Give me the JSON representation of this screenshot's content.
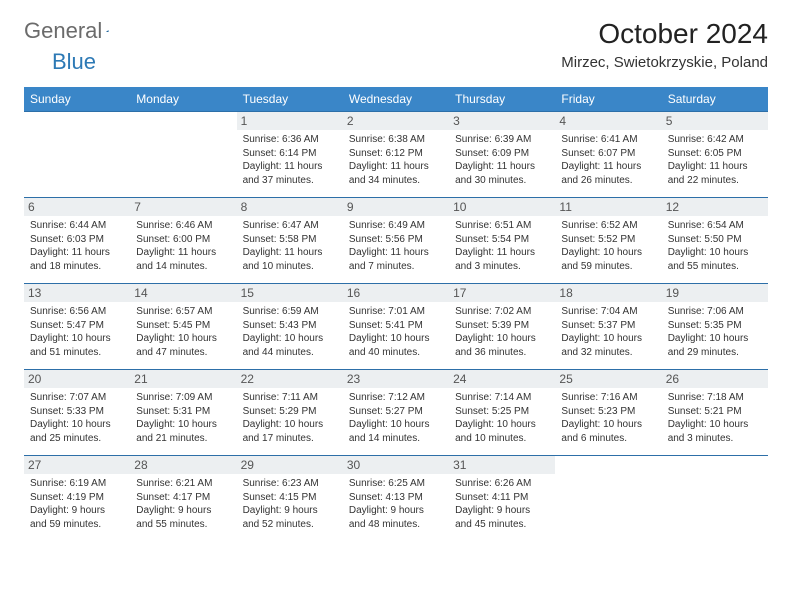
{
  "brand": {
    "part1": "General",
    "part2": "Blue"
  },
  "title": "October 2024",
  "location": "Mirzec, Swietokrzyskie, Poland",
  "colors": {
    "header_bg": "#3a86c8",
    "row_border": "#2d6fa8",
    "daynum_bg": "#eceff1",
    "brand_gray": "#6b6b6b",
    "brand_blue": "#2d79b5"
  },
  "weekdays": [
    "Sunday",
    "Monday",
    "Tuesday",
    "Wednesday",
    "Thursday",
    "Friday",
    "Saturday"
  ],
  "weeks": [
    [
      null,
      null,
      {
        "n": "1",
        "sr": "6:36 AM",
        "ss": "6:14 PM",
        "dl": "11 hours and 37 minutes."
      },
      {
        "n": "2",
        "sr": "6:38 AM",
        "ss": "6:12 PM",
        "dl": "11 hours and 34 minutes."
      },
      {
        "n": "3",
        "sr": "6:39 AM",
        "ss": "6:09 PM",
        "dl": "11 hours and 30 minutes."
      },
      {
        "n": "4",
        "sr": "6:41 AM",
        "ss": "6:07 PM",
        "dl": "11 hours and 26 minutes."
      },
      {
        "n": "5",
        "sr": "6:42 AM",
        "ss": "6:05 PM",
        "dl": "11 hours and 22 minutes."
      }
    ],
    [
      {
        "n": "6",
        "sr": "6:44 AM",
        "ss": "6:03 PM",
        "dl": "11 hours and 18 minutes."
      },
      {
        "n": "7",
        "sr": "6:46 AM",
        "ss": "6:00 PM",
        "dl": "11 hours and 14 minutes."
      },
      {
        "n": "8",
        "sr": "6:47 AM",
        "ss": "5:58 PM",
        "dl": "11 hours and 10 minutes."
      },
      {
        "n": "9",
        "sr": "6:49 AM",
        "ss": "5:56 PM",
        "dl": "11 hours and 7 minutes."
      },
      {
        "n": "10",
        "sr": "6:51 AM",
        "ss": "5:54 PM",
        "dl": "11 hours and 3 minutes."
      },
      {
        "n": "11",
        "sr": "6:52 AM",
        "ss": "5:52 PM",
        "dl": "10 hours and 59 minutes."
      },
      {
        "n": "12",
        "sr": "6:54 AM",
        "ss": "5:50 PM",
        "dl": "10 hours and 55 minutes."
      }
    ],
    [
      {
        "n": "13",
        "sr": "6:56 AM",
        "ss": "5:47 PM",
        "dl": "10 hours and 51 minutes."
      },
      {
        "n": "14",
        "sr": "6:57 AM",
        "ss": "5:45 PM",
        "dl": "10 hours and 47 minutes."
      },
      {
        "n": "15",
        "sr": "6:59 AM",
        "ss": "5:43 PM",
        "dl": "10 hours and 44 minutes."
      },
      {
        "n": "16",
        "sr": "7:01 AM",
        "ss": "5:41 PM",
        "dl": "10 hours and 40 minutes."
      },
      {
        "n": "17",
        "sr": "7:02 AM",
        "ss": "5:39 PM",
        "dl": "10 hours and 36 minutes."
      },
      {
        "n": "18",
        "sr": "7:04 AM",
        "ss": "5:37 PM",
        "dl": "10 hours and 32 minutes."
      },
      {
        "n": "19",
        "sr": "7:06 AM",
        "ss": "5:35 PM",
        "dl": "10 hours and 29 minutes."
      }
    ],
    [
      {
        "n": "20",
        "sr": "7:07 AM",
        "ss": "5:33 PM",
        "dl": "10 hours and 25 minutes."
      },
      {
        "n": "21",
        "sr": "7:09 AM",
        "ss": "5:31 PM",
        "dl": "10 hours and 21 minutes."
      },
      {
        "n": "22",
        "sr": "7:11 AM",
        "ss": "5:29 PM",
        "dl": "10 hours and 17 minutes."
      },
      {
        "n": "23",
        "sr": "7:12 AM",
        "ss": "5:27 PM",
        "dl": "10 hours and 14 minutes."
      },
      {
        "n": "24",
        "sr": "7:14 AM",
        "ss": "5:25 PM",
        "dl": "10 hours and 10 minutes."
      },
      {
        "n": "25",
        "sr": "7:16 AM",
        "ss": "5:23 PM",
        "dl": "10 hours and 6 minutes."
      },
      {
        "n": "26",
        "sr": "7:18 AM",
        "ss": "5:21 PM",
        "dl": "10 hours and 3 minutes."
      }
    ],
    [
      {
        "n": "27",
        "sr": "6:19 AM",
        "ss": "4:19 PM",
        "dl": "9 hours and 59 minutes."
      },
      {
        "n": "28",
        "sr": "6:21 AM",
        "ss": "4:17 PM",
        "dl": "9 hours and 55 minutes."
      },
      {
        "n": "29",
        "sr": "6:23 AM",
        "ss": "4:15 PM",
        "dl": "9 hours and 52 minutes."
      },
      {
        "n": "30",
        "sr": "6:25 AM",
        "ss": "4:13 PM",
        "dl": "9 hours and 48 minutes."
      },
      {
        "n": "31",
        "sr": "6:26 AM",
        "ss": "4:11 PM",
        "dl": "9 hours and 45 minutes."
      },
      null,
      null
    ]
  ],
  "labels": {
    "sunrise": "Sunrise: ",
    "sunset": "Sunset: ",
    "daylight": "Daylight: "
  }
}
